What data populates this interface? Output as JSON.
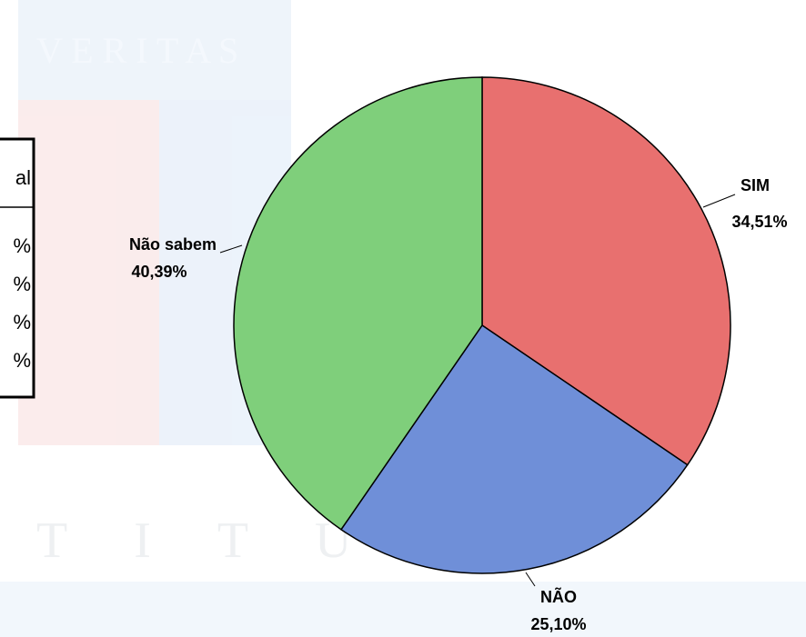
{
  "chart_data": {
    "type": "pie",
    "categories": [
      "SIM",
      "NÃO",
      "Não sabem"
    ],
    "values": [
      34.51,
      25.1,
      40.39
    ],
    "value_labels": [
      "34,51%",
      "25,10%",
      "40,39%"
    ],
    "colors": [
      "#e8706f",
      "#6f8fd8",
      "#7fcf7b"
    ]
  },
  "watermark": {
    "top": "V E R I T A S",
    "bottom": "T I T U"
  },
  "table": {
    "header": "al",
    "rows": [
      "%",
      "%",
      "%",
      "%"
    ]
  }
}
